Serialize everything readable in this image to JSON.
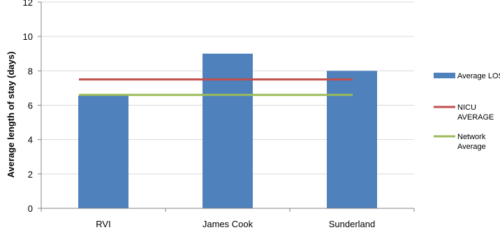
{
  "chart_data": {
    "type": "bar",
    "title": "",
    "xlabel": "",
    "ylabel": "Average length of stay (days)",
    "categories": [
      "RVI",
      "James Cook",
      "Sunderland"
    ],
    "ylim": [
      0,
      12
    ],
    "yticks": [
      0,
      2,
      4,
      6,
      8,
      10,
      12
    ],
    "grid": "horizontal",
    "legend_position": "right",
    "series": [
      {
        "name": "Average LOS",
        "type": "bar",
        "values": [
          6.55,
          9.0,
          8.0
        ],
        "color": "#4F81BD"
      },
      {
        "name": "NICU AVERAGE",
        "type": "line",
        "values": [
          7.5,
          7.5,
          7.5
        ],
        "color": "#C0504D"
      },
      {
        "name": "Network Average",
        "type": "line",
        "values": [
          6.6,
          6.6,
          6.6
        ],
        "color": "#9BBB59"
      }
    ],
    "legend": [
      {
        "lines": [
          "Average LOS"
        ],
        "color": "#4F81BD",
        "marker": "bar"
      },
      {
        "lines": [
          "NICU",
          "AVERAGE"
        ],
        "color": "#C0504D",
        "marker": "line"
      },
      {
        "lines": [
          "Network",
          "Average"
        ],
        "color": "#9BBB59",
        "marker": "line"
      }
    ]
  }
}
